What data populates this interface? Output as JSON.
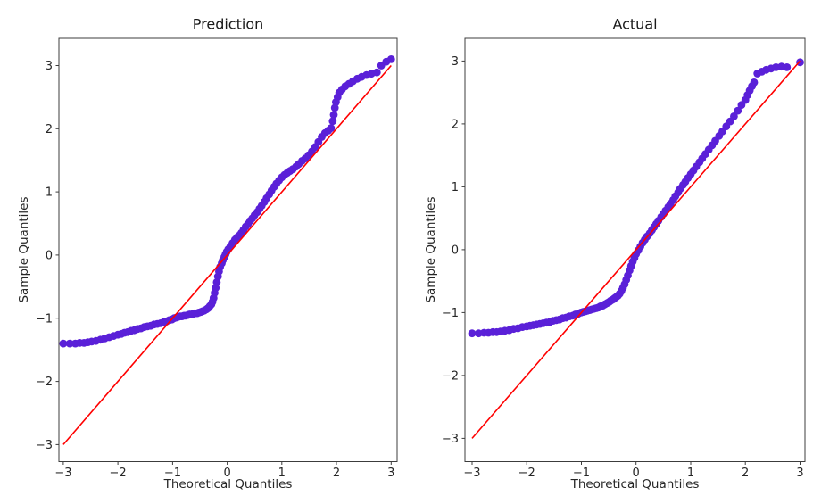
{
  "figure": {
    "background": "#ffffff",
    "text_color": "#262626",
    "spine_color": "#3c3c3c"
  },
  "chart_data": [
    {
      "type": "scatter",
      "title": "Prediction",
      "xlabel": "Theoretical Quantiles",
      "ylabel": "Sample Quantiles",
      "xlim": [
        -3.08,
        3.11
      ],
      "ylim": [
        -3.27,
        3.43
      ],
      "xticks": [
        -3,
        -2,
        -1,
        0,
        1,
        2,
        3
      ],
      "yticks": [
        -3,
        -2,
        -1,
        0,
        1,
        2,
        3
      ],
      "grid": false,
      "legend": null,
      "marker_color": "#5a20d8",
      "marker_radius_px": 4.4,
      "ref_line": {
        "name": "45-degree-line",
        "x": [
          -3,
          3
        ],
        "y": [
          -3,
          3
        ],
        "color": "#ff0000"
      },
      "points": [
        [
          -3.0,
          -1.4
        ],
        [
          -2.88,
          -1.4
        ],
        [
          -2.78,
          -1.4
        ],
        [
          -2.7,
          -1.39
        ],
        [
          -2.62,
          -1.39
        ],
        [
          -2.55,
          -1.38
        ],
        [
          -2.48,
          -1.37
        ],
        [
          -2.4,
          -1.36
        ],
        [
          -2.32,
          -1.34
        ],
        [
          -2.24,
          -1.32
        ],
        [
          -2.16,
          -1.3
        ],
        [
          -2.08,
          -1.28
        ],
        [
          -2.0,
          -1.26
        ],
        [
          -1.94,
          -1.25
        ],
        [
          -1.88,
          -1.23
        ],
        [
          -1.82,
          -1.22
        ],
        [
          -1.76,
          -1.2
        ],
        [
          -1.7,
          -1.19
        ],
        [
          -1.64,
          -1.17
        ],
        [
          -1.58,
          -1.16
        ],
        [
          -1.52,
          -1.14
        ],
        [
          -1.46,
          -1.13
        ],
        [
          -1.4,
          -1.12
        ],
        [
          -1.34,
          -1.1
        ],
        [
          -1.28,
          -1.09
        ],
        [
          -1.22,
          -1.08
        ],
        [
          -1.16,
          -1.06
        ],
        [
          -1.11,
          -1.05
        ],
        [
          -1.06,
          -1.03
        ],
        [
          -1.01,
          -1.02
        ],
        [
          -0.97,
          -1.0
        ],
        [
          -0.93,
          -0.99
        ],
        [
          -0.9,
          -0.98
        ],
        [
          -0.86,
          -0.97
        ],
        [
          -0.83,
          -0.97
        ],
        [
          -0.79,
          -0.96
        ],
        [
          -0.76,
          -0.96
        ],
        [
          -0.72,
          -0.95
        ],
        [
          -0.69,
          -0.94
        ],
        [
          -0.66,
          -0.94
        ],
        [
          -0.62,
          -0.93
        ],
        [
          -0.59,
          -0.92
        ],
        [
          -0.55,
          -0.92
        ],
        [
          -0.52,
          -0.91
        ],
        [
          -0.48,
          -0.9
        ],
        [
          -0.45,
          -0.89
        ],
        [
          -0.42,
          -0.88
        ],
        [
          -0.38,
          -0.86
        ],
        [
          -0.35,
          -0.84
        ],
        [
          -0.32,
          -0.81
        ],
        [
          -0.29,
          -0.78
        ],
        [
          -0.27,
          -0.74
        ],
        [
          -0.25,
          -0.68
        ],
        [
          -0.23,
          -0.6
        ],
        [
          -0.21,
          -0.52
        ],
        [
          -0.19,
          -0.43
        ],
        [
          -0.17,
          -0.34
        ],
        [
          -0.15,
          -0.26
        ],
        [
          -0.13,
          -0.19
        ],
        [
          -0.1,
          -0.13
        ],
        [
          -0.08,
          -0.08
        ],
        [
          -0.05,
          -0.03
        ],
        [
          -0.03,
          0.01
        ],
        [
          -0.01,
          0.05
        ],
        [
          0.02,
          0.09
        ],
        [
          0.06,
          0.14
        ],
        [
          0.1,
          0.19
        ],
        [
          0.14,
          0.24
        ],
        [
          0.18,
          0.28
        ],
        [
          0.22,
          0.31
        ],
        [
          0.26,
          0.35
        ],
        [
          0.3,
          0.4
        ],
        [
          0.34,
          0.45
        ],
        [
          0.38,
          0.49
        ],
        [
          0.42,
          0.54
        ],
        [
          0.46,
          0.58
        ],
        [
          0.5,
          0.63
        ],
        [
          0.55,
          0.68
        ],
        [
          0.59,
          0.73
        ],
        [
          0.63,
          0.78
        ],
        [
          0.68,
          0.84
        ],
        [
          0.72,
          0.9
        ],
        [
          0.77,
          0.96
        ],
        [
          0.81,
          1.02
        ],
        [
          0.86,
          1.08
        ],
        [
          0.9,
          1.13
        ],
        [
          0.95,
          1.18
        ],
        [
          1.0,
          1.23
        ],
        [
          1.05,
          1.27
        ],
        [
          1.1,
          1.3
        ],
        [
          1.15,
          1.33
        ],
        [
          1.2,
          1.36
        ],
        [
          1.26,
          1.4
        ],
        [
          1.31,
          1.44
        ],
        [
          1.37,
          1.49
        ],
        [
          1.43,
          1.53
        ],
        [
          1.49,
          1.58
        ],
        [
          1.55,
          1.64
        ],
        [
          1.61,
          1.71
        ],
        [
          1.67,
          1.79
        ],
        [
          1.73,
          1.87
        ],
        [
          1.79,
          1.93
        ],
        [
          1.85,
          1.97
        ],
        [
          1.9,
          2.01
        ],
        [
          1.93,
          2.12
        ],
        [
          1.95,
          2.22
        ],
        [
          1.97,
          2.33
        ],
        [
          1.99,
          2.42
        ],
        [
          2.02,
          2.5
        ],
        [
          2.05,
          2.57
        ],
        [
          2.1,
          2.62
        ],
        [
          2.16,
          2.67
        ],
        [
          2.23,
          2.71
        ],
        [
          2.3,
          2.75
        ],
        [
          2.38,
          2.79
        ],
        [
          2.46,
          2.82
        ],
        [
          2.55,
          2.85
        ],
        [
          2.64,
          2.87
        ],
        [
          2.74,
          2.89
        ],
        [
          2.82,
          3.0
        ],
        [
          2.91,
          3.06
        ],
        [
          3.0,
          3.1
        ]
      ]
    },
    {
      "type": "scatter",
      "title": "Actual",
      "xlabel": "Theoretical Quantiles",
      "ylabel": "Sample Quantiles",
      "xlim": [
        -3.13,
        3.09
      ],
      "ylim": [
        -3.37,
        3.36
      ],
      "xticks": [
        -3,
        -2,
        -1,
        0,
        1,
        2,
        3
      ],
      "yticks": [
        -3,
        -2,
        -1,
        0,
        1,
        2,
        3
      ],
      "grid": false,
      "legend": null,
      "marker_color": "#5a20d8",
      "marker_radius_px": 4.4,
      "ref_line": {
        "name": "45-degree-line",
        "x": [
          -3,
          3
        ],
        "y": [
          -3,
          3
        ],
        "color": "#ff0000"
      },
      "points": [
        [
          -3.0,
          -1.33
        ],
        [
          -2.88,
          -1.33
        ],
        [
          -2.78,
          -1.32
        ],
        [
          -2.7,
          -1.32
        ],
        [
          -2.62,
          -1.31
        ],
        [
          -2.55,
          -1.31
        ],
        [
          -2.48,
          -1.3
        ],
        [
          -2.4,
          -1.29
        ],
        [
          -2.32,
          -1.28
        ],
        [
          -2.24,
          -1.26
        ],
        [
          -2.16,
          -1.25
        ],
        [
          -2.08,
          -1.23
        ],
        [
          -2.0,
          -1.22
        ],
        [
          -1.94,
          -1.21
        ],
        [
          -1.88,
          -1.2
        ],
        [
          -1.82,
          -1.19
        ],
        [
          -1.76,
          -1.18
        ],
        [
          -1.7,
          -1.17
        ],
        [
          -1.64,
          -1.16
        ],
        [
          -1.58,
          -1.15
        ],
        [
          -1.52,
          -1.13
        ],
        [
          -1.46,
          -1.12
        ],
        [
          -1.4,
          -1.11
        ],
        [
          -1.34,
          -1.09
        ],
        [
          -1.28,
          -1.08
        ],
        [
          -1.22,
          -1.06
        ],
        [
          -1.16,
          -1.05
        ],
        [
          -1.11,
          -1.03
        ],
        [
          -1.06,
          -1.02
        ],
        [
          -1.01,
          -1.0
        ],
        [
          -0.97,
          -0.99
        ],
        [
          -0.93,
          -0.98
        ],
        [
          -0.89,
          -0.97
        ],
        [
          -0.85,
          -0.96
        ],
        [
          -0.81,
          -0.95
        ],
        [
          -0.77,
          -0.94
        ],
        [
          -0.73,
          -0.93
        ],
        [
          -0.69,
          -0.92
        ],
        [
          -0.65,
          -0.9
        ],
        [
          -0.61,
          -0.89
        ],
        [
          -0.57,
          -0.87
        ],
        [
          -0.53,
          -0.85
        ],
        [
          -0.49,
          -0.83
        ],
        [
          -0.46,
          -0.81
        ],
        [
          -0.42,
          -0.79
        ],
        [
          -0.39,
          -0.77
        ],
        [
          -0.36,
          -0.75
        ],
        [
          -0.33,
          -0.73
        ],
        [
          -0.3,
          -0.7
        ],
        [
          -0.27,
          -0.66
        ],
        [
          -0.24,
          -0.61
        ],
        [
          -0.21,
          -0.55
        ],
        [
          -0.18,
          -0.48
        ],
        [
          -0.15,
          -0.41
        ],
        [
          -0.12,
          -0.33
        ],
        [
          -0.09,
          -0.26
        ],
        [
          -0.06,
          -0.19
        ],
        [
          -0.03,
          -0.13
        ],
        [
          0.0,
          -0.07
        ],
        [
          0.04,
          -0.01
        ],
        [
          0.08,
          0.05
        ],
        [
          0.12,
          0.11
        ],
        [
          0.16,
          0.16
        ],
        [
          0.2,
          0.21
        ],
        [
          0.25,
          0.26
        ],
        [
          0.29,
          0.31
        ],
        [
          0.33,
          0.36
        ],
        [
          0.37,
          0.41
        ],
        [
          0.41,
          0.46
        ],
        [
          0.46,
          0.52
        ],
        [
          0.5,
          0.57
        ],
        [
          0.54,
          0.62
        ],
        [
          0.59,
          0.68
        ],
        [
          0.63,
          0.73
        ],
        [
          0.68,
          0.79
        ],
        [
          0.72,
          0.85
        ],
        [
          0.77,
          0.91
        ],
        [
          0.81,
          0.97
        ],
        [
          0.86,
          1.03
        ],
        [
          0.9,
          1.08
        ],
        [
          0.95,
          1.14
        ],
        [
          1.0,
          1.2
        ],
        [
          1.05,
          1.26
        ],
        [
          1.1,
          1.32
        ],
        [
          1.16,
          1.39
        ],
        [
          1.21,
          1.45
        ],
        [
          1.27,
          1.52
        ],
        [
          1.33,
          1.59
        ],
        [
          1.39,
          1.66
        ],
        [
          1.45,
          1.73
        ],
        [
          1.52,
          1.81
        ],
        [
          1.58,
          1.88
        ],
        [
          1.65,
          1.96
        ],
        [
          1.72,
          2.04
        ],
        [
          1.79,
          2.12
        ],
        [
          1.86,
          2.21
        ],
        [
          1.93,
          2.3
        ],
        [
          2.0,
          2.38
        ],
        [
          2.04,
          2.46
        ],
        [
          2.08,
          2.53
        ],
        [
          2.12,
          2.6
        ],
        [
          2.16,
          2.66
        ],
        [
          2.22,
          2.8
        ],
        [
          2.3,
          2.83
        ],
        [
          2.38,
          2.86
        ],
        [
          2.47,
          2.88
        ],
        [
          2.56,
          2.9
        ],
        [
          2.66,
          2.91
        ],
        [
          2.76,
          2.9
        ],
        [
          3.0,
          2.98
        ]
      ]
    }
  ]
}
